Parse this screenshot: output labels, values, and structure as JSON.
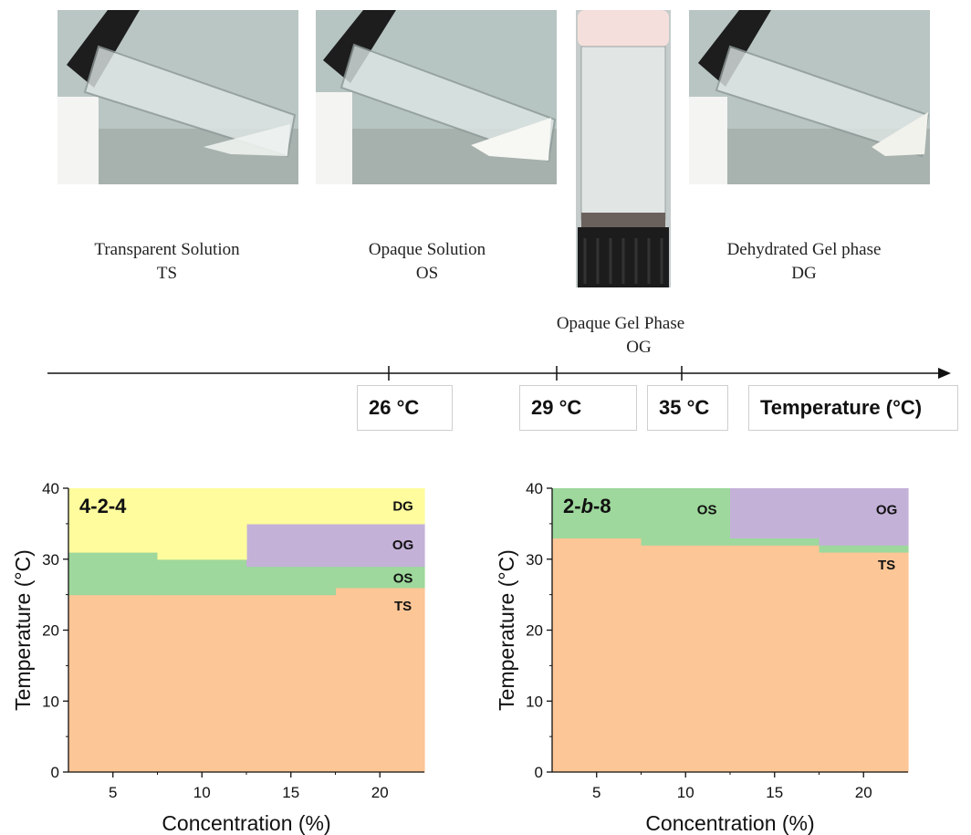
{
  "states": [
    {
      "name": "Transparent Solution",
      "abbr": "TS"
    },
    {
      "name": "Opaque Solution",
      "abbr": "OS"
    },
    {
      "name": "Opaque Gel Phase",
      "abbr": "OG"
    },
    {
      "name": "Dehydrated Gel phase",
      "abbr": "DG"
    }
  ],
  "timeline": {
    "ticks": [
      "26 °C",
      "29 °C",
      "35 °C"
    ],
    "axis_label": "Temperature (°C)"
  },
  "colors": {
    "TS": "#fdc696",
    "OS": "#9ed89c",
    "OG": "#c4b1d8",
    "DG": "#fffc9d"
  },
  "chart_data": [
    {
      "type": "area",
      "title": "4-2-4",
      "xlabel": "Concentration (%)",
      "ylabel": "Temperature (°C)",
      "xlim": [
        2.5,
        22.5
      ],
      "ylim": [
        0,
        40
      ],
      "xticks": [
        5,
        10,
        15,
        20
      ],
      "yticks": [
        0,
        10,
        20,
        30,
        40
      ],
      "regions": [
        {
          "name": "TS",
          "color": "#fdc696",
          "segments": [
            {
              "x": [
                2.5,
                17.5
              ],
              "y": [
                0,
                25
              ]
            },
            {
              "x": [
                17.5,
                22.5
              ],
              "y": [
                0,
                26
              ]
            }
          ]
        },
        {
          "name": "OS",
          "color": "#9ed89c",
          "segments": [
            {
              "x": [
                2.5,
                7.5
              ],
              "y": [
                25,
                31
              ]
            },
            {
              "x": [
                7.5,
                12.5
              ],
              "y": [
                25,
                30
              ]
            },
            {
              "x": [
                12.5,
                17.5
              ],
              "y": [
                25,
                29
              ]
            },
            {
              "x": [
                17.5,
                22.5
              ],
              "y": [
                26,
                29
              ]
            }
          ]
        },
        {
          "name": "OG",
          "color": "#c4b1d8",
          "segments": [
            {
              "x": [
                12.5,
                22.5
              ],
              "y": [
                29,
                35
              ]
            }
          ]
        },
        {
          "name": "DG",
          "color": "#fffc9d",
          "segments": [
            {
              "x": [
                2.5,
                7.5
              ],
              "y": [
                31,
                40
              ]
            },
            {
              "x": [
                7.5,
                12.5
              ],
              "y": [
                30,
                40
              ]
            },
            {
              "x": [
                12.5,
                22.5
              ],
              "y": [
                35,
                40
              ]
            }
          ]
        }
      ],
      "labels": [
        {
          "text": "DG",
          "x": 21.3,
          "y": 37.5
        },
        {
          "text": "OG",
          "x": 21.3,
          "y": 32
        },
        {
          "text": "OS",
          "x": 21.3,
          "y": 27.3
        },
        {
          "text": "TS",
          "x": 21.3,
          "y": 23.4
        }
      ]
    },
    {
      "type": "area",
      "title": "2-b-8",
      "xlabel": "Concentration (%)",
      "ylabel": "Temperature (°C)",
      "xlim": [
        2.5,
        22.5
      ],
      "ylim": [
        0,
        40
      ],
      "xticks": [
        5,
        10,
        15,
        20
      ],
      "yticks": [
        0,
        10,
        20,
        30,
        40
      ],
      "regions": [
        {
          "name": "TS",
          "color": "#fdc696",
          "segments": [
            {
              "x": [
                2.5,
                7.5
              ],
              "y": [
                0,
                33
              ]
            },
            {
              "x": [
                7.5,
                17.5
              ],
              "y": [
                0,
                32
              ]
            },
            {
              "x": [
                17.5,
                22.5
              ],
              "y": [
                0,
                31
              ]
            }
          ]
        },
        {
          "name": "OS",
          "color": "#9ed89c",
          "segments": [
            {
              "x": [
                2.5,
                7.5
              ],
              "y": [
                33,
                40
              ]
            },
            {
              "x": [
                7.5,
                12.5
              ],
              "y": [
                32,
                40
              ]
            },
            {
              "x": [
                12.5,
                17.5
              ],
              "y": [
                32,
                33
              ]
            },
            {
              "x": [
                17.5,
                22.5
              ],
              "y": [
                31,
                32
              ]
            }
          ]
        },
        {
          "name": "OG",
          "color": "#c4b1d8",
          "segments": [
            {
              "x": [
                12.5,
                17.5
              ],
              "y": [
                33,
                40
              ]
            },
            {
              "x": [
                17.5,
                22.5
              ],
              "y": [
                32,
                40
              ]
            }
          ]
        }
      ],
      "labels": [
        {
          "text": "OS",
          "x": 11.2,
          "y": 37
        },
        {
          "text": "OG",
          "x": 21.3,
          "y": 37
        },
        {
          "text": "TS",
          "x": 21.3,
          "y": 29.2
        }
      ]
    }
  ]
}
